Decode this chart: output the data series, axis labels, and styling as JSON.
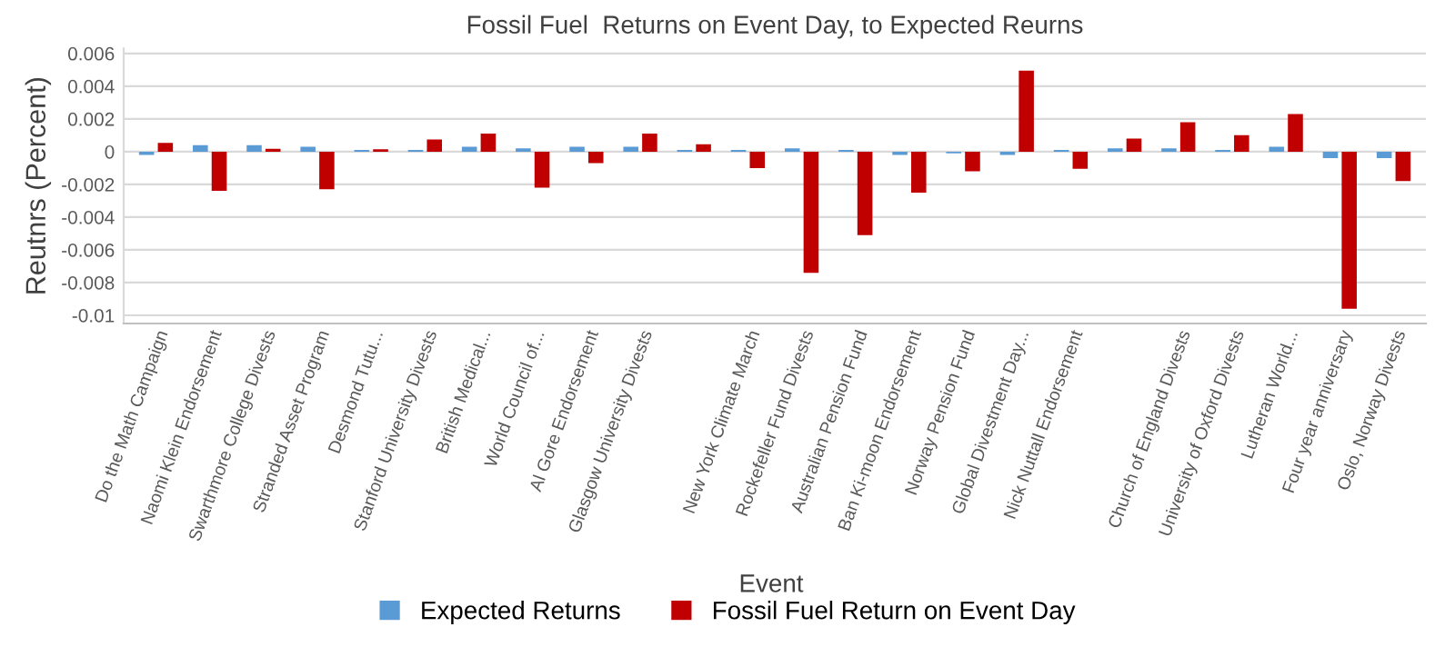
{
  "chart_data": {
    "type": "bar",
    "title": "Fossil Fuel  Returns on Event Day, to Expected Reurns",
    "xlabel": "Event",
    "ylabel": "Reutnrs (Percent)",
    "categories": [
      "Do the Math Campaign",
      "Naomi Klein Endorsement",
      "Swarthmore College Divests",
      "Stranded Asset Program",
      "Desmond Tutu...",
      "Stanford University Divests",
      "British Medical...",
      "World Council of...",
      "Al Gore Endorsement",
      "Glasgow University Divests",
      null,
      "New York Climate March",
      "Rockefeller Fund Divests",
      "Australian Pension Fund",
      "Ban Ki-moon Endorsement",
      "Norway Pension Fund",
      "Global Divestment Day...",
      "Nick Nuttall Endorsement",
      null,
      "Church of England Divests",
      "University of Oxford Divests",
      "Lutheran World...",
      "Four year anniversary",
      "Oslo, Norway Divests"
    ],
    "series": [
      {
        "name": "Expected Returns",
        "color": "#5b9bd5",
        "values": [
          -0.0002,
          0.0004,
          0.0004,
          0.0003,
          0.0001,
          0.0001,
          0.0003,
          0.0002,
          0.0003,
          0.0003,
          0.0001,
          0.0001,
          0.0002,
          0.0001,
          -0.0002,
          -0.0001,
          -0.0002,
          0.0001,
          0.0002,
          0.0002,
          0.0001,
          0.0003,
          -0.0004,
          -0.0004
        ]
      },
      {
        "name": "Fossil Fuel Return on Event Day",
        "color": "#c00000",
        "values": [
          0.00053,
          -0.0024,
          0.00017,
          -0.0023,
          0.00015,
          0.00074,
          0.0011,
          -0.0022,
          -0.0007,
          0.0011,
          0.00045,
          -0.001,
          -0.0074,
          -0.0051,
          -0.0025,
          -0.0012,
          0.00495,
          -0.00105,
          0.0008,
          0.0018,
          0.001,
          0.0023,
          -0.0096,
          -0.0018
        ]
      }
    ],
    "ylim": [
      -0.0105,
      0.0063
    ],
    "yticks": [
      -0.01,
      -0.008,
      -0.006,
      -0.004,
      -0.002,
      0,
      0.002,
      0.004,
      0.006
    ],
    "grid": "y",
    "legend": "bottom"
  }
}
